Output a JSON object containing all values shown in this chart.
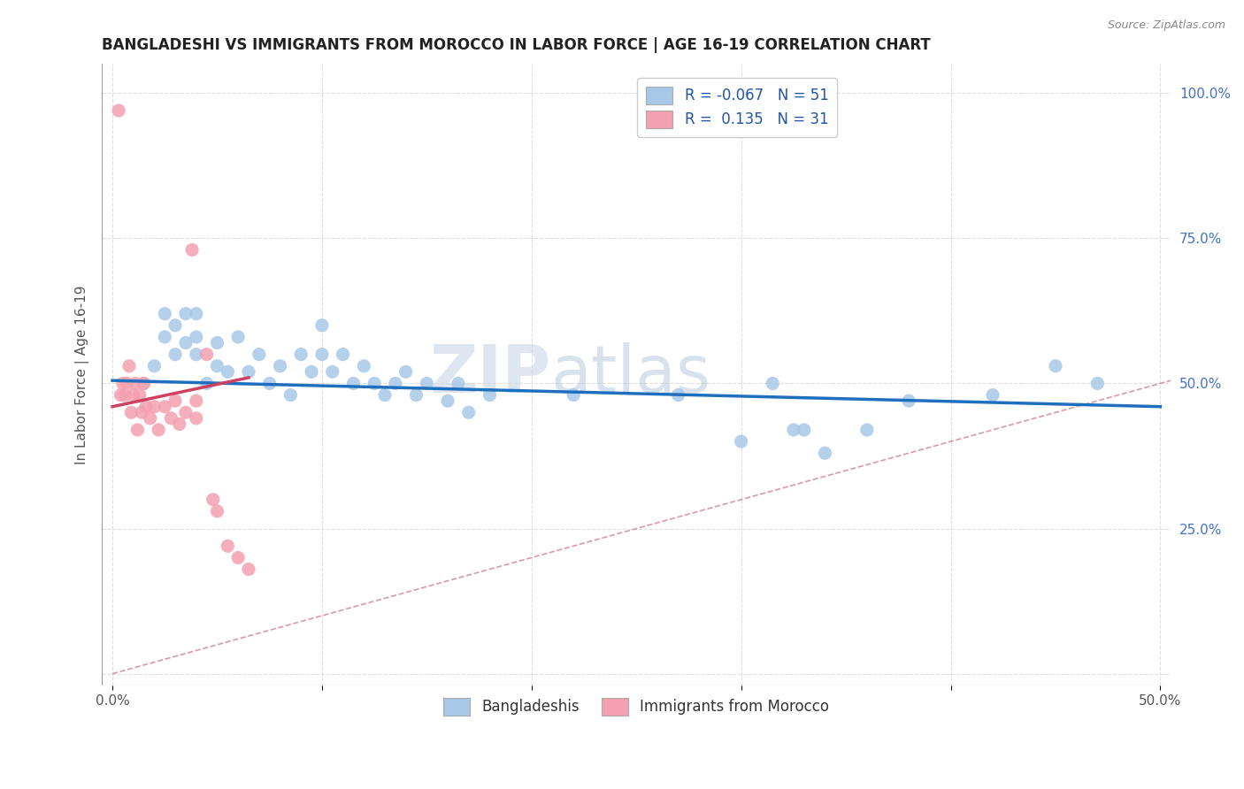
{
  "title": "BANGLADESHI VS IMMIGRANTS FROM MOROCCO IN LABOR FORCE | AGE 16-19 CORRELATION CHART",
  "source": "Source: ZipAtlas.com",
  "ylabel_left": "In Labor Force | Age 16-19",
  "x_ticks": [
    0.0,
    0.1,
    0.2,
    0.3,
    0.4,
    0.5
  ],
  "x_tick_labels": [
    "0.0%",
    "",
    "",
    "",
    "",
    "50.0%"
  ],
  "y_ticks_right": [
    0.0,
    0.25,
    0.5,
    0.75,
    1.0
  ],
  "y_tick_labels_right": [
    "",
    "25.0%",
    "50.0%",
    "75.0%",
    "100.0%"
  ],
  "xlim": [
    -0.005,
    0.505
  ],
  "ylim": [
    -0.02,
    1.05
  ],
  "legend_R1": "-0.067",
  "legend_N1": "51",
  "legend_R2": "0.135",
  "legend_N2": "31",
  "color_blue": "#a8c8e8",
  "color_blue_dark": "#1f6fbf",
  "color_pink": "#f4a0b0",
  "color_pink_dark": "#d04060",
  "color_diag": "#d08090",
  "watermark_zip": "ZIP",
  "watermark_atlas": "atlas",
  "blue_scatter_x": [
    0.015,
    0.02,
    0.025,
    0.025,
    0.03,
    0.03,
    0.035,
    0.035,
    0.04,
    0.04,
    0.04,
    0.045,
    0.05,
    0.05,
    0.055,
    0.06,
    0.065,
    0.07,
    0.075,
    0.08,
    0.085,
    0.09,
    0.095,
    0.1,
    0.1,
    0.105,
    0.11,
    0.115,
    0.12,
    0.125,
    0.13,
    0.135,
    0.14,
    0.145,
    0.15,
    0.16,
    0.165,
    0.17,
    0.18,
    0.22,
    0.27,
    0.3,
    0.315,
    0.325,
    0.33,
    0.34,
    0.36,
    0.38,
    0.42,
    0.45,
    0.47
  ],
  "blue_scatter_y": [
    0.5,
    0.53,
    0.58,
    0.62,
    0.55,
    0.6,
    0.57,
    0.62,
    0.55,
    0.58,
    0.62,
    0.5,
    0.53,
    0.57,
    0.52,
    0.58,
    0.52,
    0.55,
    0.5,
    0.53,
    0.48,
    0.55,
    0.52,
    0.55,
    0.6,
    0.52,
    0.55,
    0.5,
    0.53,
    0.5,
    0.48,
    0.5,
    0.52,
    0.48,
    0.5,
    0.47,
    0.5,
    0.45,
    0.48,
    0.48,
    0.48,
    0.4,
    0.5,
    0.42,
    0.42,
    0.38,
    0.42,
    0.47,
    0.48,
    0.53,
    0.5
  ],
  "pink_scatter_x": [
    0.003,
    0.004,
    0.005,
    0.006,
    0.007,
    0.008,
    0.009,
    0.01,
    0.011,
    0.012,
    0.013,
    0.014,
    0.015,
    0.016,
    0.018,
    0.02,
    0.022,
    0.025,
    0.028,
    0.03,
    0.032,
    0.035,
    0.038,
    0.04,
    0.04,
    0.045,
    0.048,
    0.05,
    0.055,
    0.06,
    0.065
  ],
  "pink_scatter_y": [
    0.97,
    0.48,
    0.5,
    0.48,
    0.5,
    0.53,
    0.45,
    0.48,
    0.5,
    0.42,
    0.48,
    0.45,
    0.5,
    0.46,
    0.44,
    0.46,
    0.42,
    0.46,
    0.44,
    0.47,
    0.43,
    0.45,
    0.73,
    0.44,
    0.47,
    0.55,
    0.3,
    0.28,
    0.22,
    0.2,
    0.18
  ],
  "blue_trend_x": [
    0.0,
    0.5
  ],
  "blue_trend_y": [
    0.505,
    0.46
  ],
  "pink_trend_x": [
    0.0,
    0.065
  ],
  "pink_trend_y": [
    0.46,
    0.51
  ],
  "legend_label1": "Bangladeshis",
  "legend_label2": "Immigrants from Morocco",
  "background_color": "#ffffff",
  "plot_bg_color": "#ffffff",
  "grid_color": "#d8d8d8"
}
